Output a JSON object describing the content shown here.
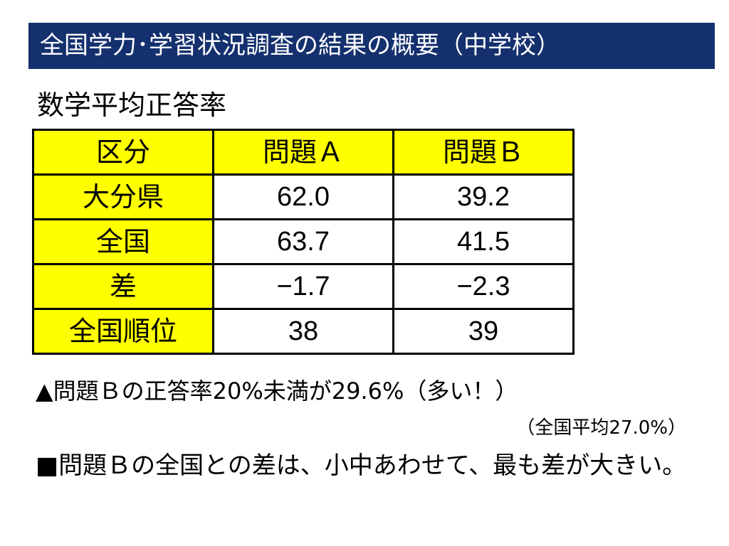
{
  "header": {
    "title": "全国学力･学習状況調査の結果の概要（中学校）"
  },
  "subtitle": "数学平均正答率",
  "table": {
    "columns": [
      "区分",
      "問題Ａ",
      "問題Ｂ"
    ],
    "rows": [
      [
        "大分県",
        "62.0",
        "39.2"
      ],
      [
        "全国",
        "63.7",
        "41.5"
      ],
      [
        "差",
        "−1.7",
        "−2.3"
      ],
      [
        "全国順位",
        "38",
        "39"
      ]
    ]
  },
  "notes": [
    "▲問題Ｂの正答率20%未満が29.6%（多い！）",
    "（全国平均27.0%）",
    "■問題Ｂの全国との差は、小中あわせて、最も差が大きい。"
  ]
}
